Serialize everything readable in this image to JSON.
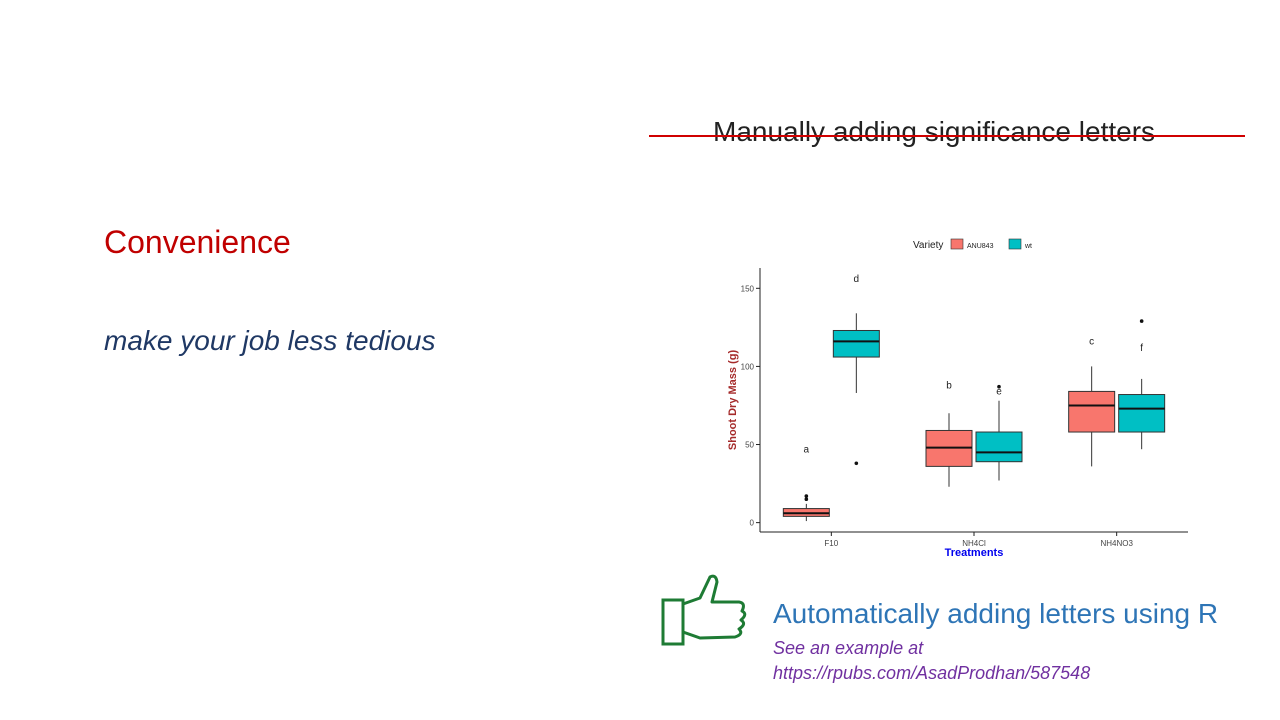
{
  "slide": {
    "heading": "Convenience",
    "subheading": "make your job less tedious",
    "struck_title": "Manually adding significance letters",
    "auto_title": "Automatically adding letters using R",
    "example_label": "See an example at",
    "example_url": "https://rpubs.com/AsadProdhan/587548",
    "thumb_icon": "thumbs-up-icon",
    "colors": {
      "heading": "#c00000",
      "subheading": "#1f3864",
      "strike": "#d00000",
      "auto_title": "#2e75b6",
      "example": "#7030a0",
      "thumb": "#1e7b34"
    }
  },
  "chart_data": {
    "type": "box",
    "legend_title": "Variety",
    "legend_placement": "top",
    "categories": [
      "F10",
      "NH4Cl",
      "NH4NO3"
    ],
    "xlabel": "Treatments",
    "ylabel": "Shoot Dry Mass (g)",
    "yticks": [
      0,
      50,
      100,
      150
    ],
    "ylim": [
      -6,
      163
    ],
    "grid": false,
    "series": [
      {
        "name": "ANU843",
        "color": "#f8766d",
        "boxes": [
          {
            "category": "F10",
            "whisker_low": 1,
            "q1": 4,
            "median": 6,
            "q3": 9,
            "whisker_high": 12,
            "outliers": [
              15,
              17
            ],
            "letter": "a",
            "letter_y": 45
          },
          {
            "category": "NH4Cl",
            "whisker_low": 23,
            "q1": 36,
            "median": 48,
            "q3": 59,
            "whisker_high": 70,
            "outliers": [],
            "letter": "b",
            "letter_y": 86
          },
          {
            "category": "NH4NO3",
            "whisker_low": 36,
            "q1": 58,
            "median": 75,
            "q3": 84,
            "whisker_high": 100,
            "outliers": [],
            "letter": "c",
            "letter_y": 114
          }
        ]
      },
      {
        "name": "wt",
        "color": "#00bfc4",
        "boxes": [
          {
            "category": "F10",
            "whisker_low": 83,
            "q1": 106,
            "median": 116,
            "q3": 123,
            "whisker_high": 134,
            "outliers": [
              38
            ],
            "letter": "d",
            "letter_y": 154
          },
          {
            "category": "NH4Cl",
            "whisker_low": 27,
            "q1": 39,
            "median": 45,
            "q3": 58,
            "whisker_high": 78,
            "outliers": [
              87
            ],
            "letter": "e",
            "letter_y": 82
          },
          {
            "category": "NH4NO3",
            "whisker_low": 47,
            "q1": 58,
            "median": 73,
            "q3": 82,
            "whisker_high": 92,
            "outliers": [
              129
            ],
            "letter": "f",
            "letter_y": 110
          }
        ]
      }
    ]
  }
}
